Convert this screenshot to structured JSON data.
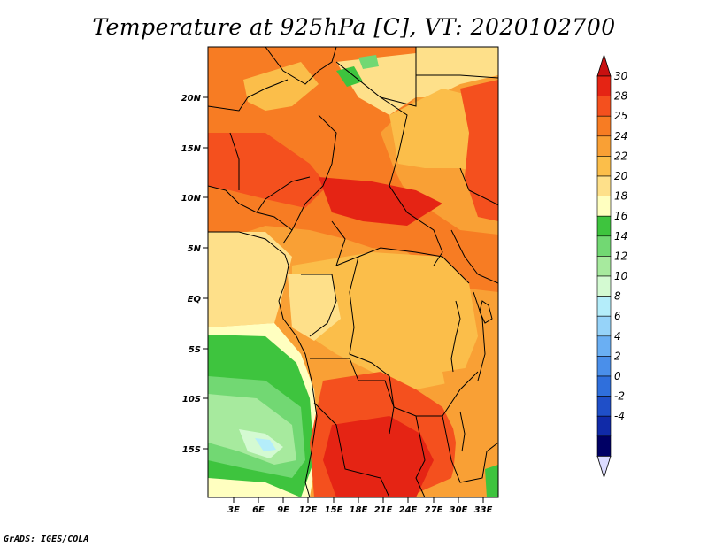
{
  "title": "Temperature at 925hPa [C], VT: 2020102700",
  "credit": "GrADS: IGES/COLA",
  "map": {
    "x_ticks": [
      "3E",
      "6E",
      "9E",
      "12E",
      "15E",
      "18E",
      "21E",
      "24E",
      "27E",
      "30E",
      "33E"
    ],
    "y_ticks": [
      "20N",
      "15N",
      "10N",
      "5N",
      "EQ",
      "5S",
      "10S",
      "15S"
    ],
    "variable": "temperature",
    "level": "925hPa",
    "units": "C",
    "valid_time": "2020102700"
  },
  "colorbar": {
    "labels": [
      "30",
      "28",
      "25",
      "24",
      "22",
      "20",
      "18",
      "16",
      "14",
      "12",
      "10",
      "8",
      "6",
      "4",
      "2",
      "0",
      "-2",
      "-4"
    ],
    "colors": [
      "#e52414",
      "#f4501e",
      "#f77c23",
      "#f9a035",
      "#fbbe4a",
      "#fee08a",
      "#ffffc0",
      "#3ec43e",
      "#72d873",
      "#a7ea9e",
      "#d4fad2",
      "#b4edfa",
      "#96d3f9",
      "#6aaff3",
      "#4a8fea",
      "#2f6fdc",
      "#1f4fc8",
      "#102aa8",
      "#000064"
    ],
    "top_arrow_color": "#c81010",
    "bottom_arrow_color": "#dcdcff"
  }
}
